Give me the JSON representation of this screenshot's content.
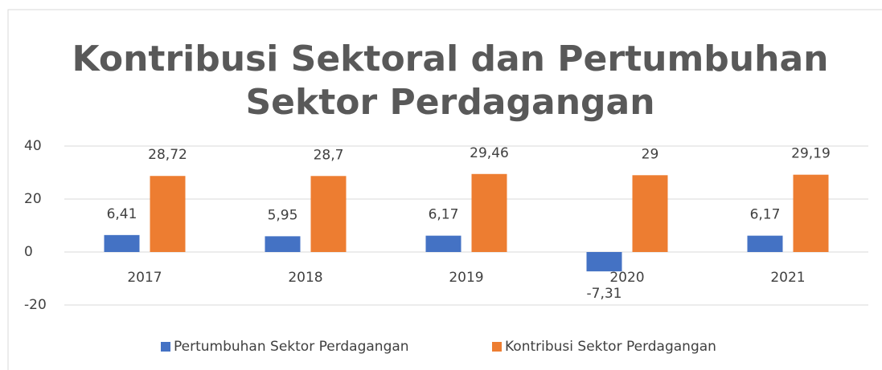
{
  "chart_data": {
    "type": "bar",
    "title": [
      "Kontribusi Sektoral dan Pertumbuhan",
      "Sektor Perdagangan"
    ],
    "categories": [
      "2017",
      "2018",
      "2019",
      "2020",
      "2021"
    ],
    "series": [
      {
        "name": "Pertumbuhan Sektor Perdagangan",
        "color": "#4472c4",
        "values": [
          6.41,
          5.95,
          6.17,
          -7.31,
          6.17
        ],
        "value_labels": [
          "6,41",
          "5,95",
          "6,17",
          "-7,31",
          "6,17"
        ]
      },
      {
        "name": "Kontribusi Sektor Perdagangan",
        "color": "#ed7d31",
        "values": [
          28.72,
          28.7,
          29.46,
          29,
          29.19
        ],
        "value_labels": [
          "28,72",
          "28,7",
          "29,46",
          "29",
          "29,19"
        ]
      }
    ],
    "ylim": [
      -20,
      40
    ],
    "yticks": [
      40,
      20,
      0,
      -20
    ],
    "grid": true,
    "legend": "bottom"
  }
}
